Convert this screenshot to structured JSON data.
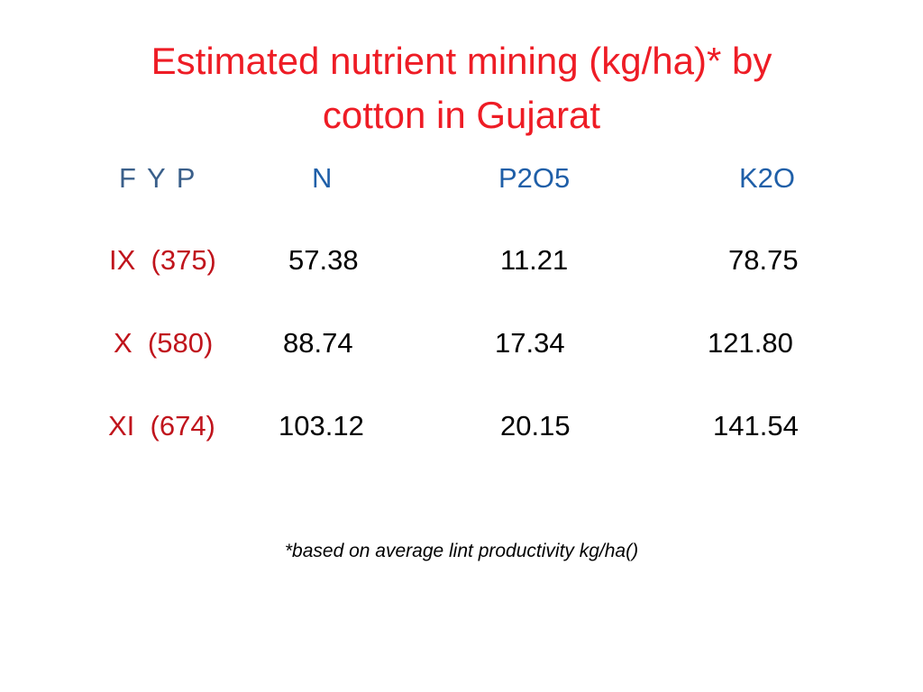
{
  "title": {
    "line1": "Estimated nutrient mining (kg/ha)* by",
    "line2": "cotton in Gujarat"
  },
  "table": {
    "headers": [
      "F Y P",
      "N",
      "P2O5",
      "K2O"
    ],
    "rows": [
      {
        "label": "IX  (375)",
        "values": [
          "57.38",
          "11.21",
          "78.75"
        ]
      },
      {
        "label": "X  (580)",
        "values": [
          "88.74",
          "17.34",
          "121.80"
        ]
      },
      {
        "label": "XI  (674)",
        "values": [
          "103.12",
          "20.15",
          "141.54"
        ]
      }
    ]
  },
  "footnote": "*based on average lint productivity kg/ha()",
  "colors": {
    "title": "#ee1c25",
    "header": "#1f5fa8",
    "row_label": "#c0141c",
    "value": "#000000"
  }
}
